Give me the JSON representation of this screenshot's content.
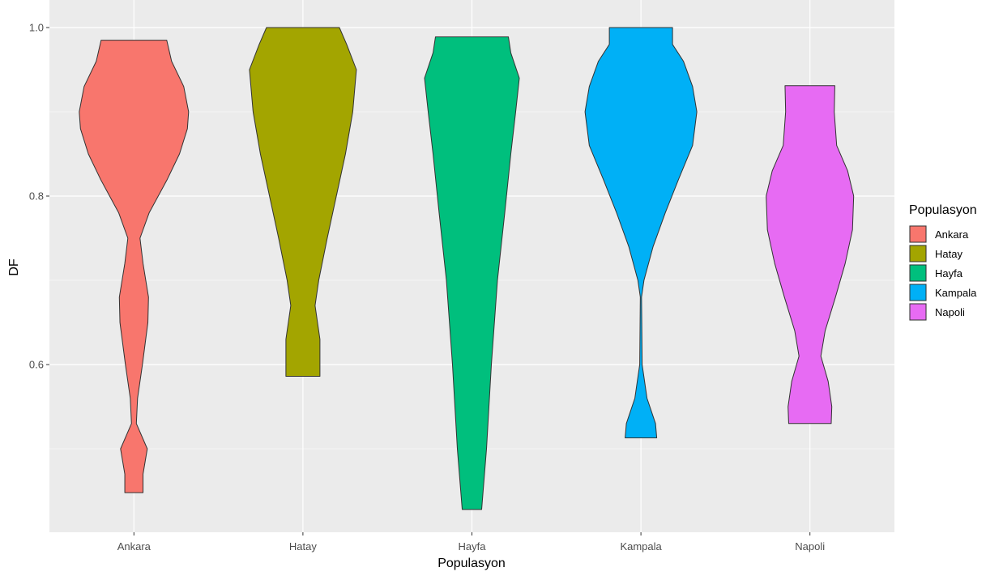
{
  "chart_data": {
    "type": "violin",
    "xlabel": "Populasyon",
    "ylabel": "DF",
    "ylim": [
      0.4,
      1.02
    ],
    "yticks": [
      "0.6",
      "0.8",
      "1.0"
    ],
    "ytick_values": [
      0.6,
      0.8,
      1.0
    ],
    "grid": true,
    "legend": {
      "title": "Populasyon",
      "placement": "right"
    },
    "categories": [
      "Ankara",
      "Hatay",
      "Hayfa",
      "Kampala",
      "Napoli"
    ],
    "series": [
      {
        "name": "Ankara",
        "color": "#F8766D",
        "min": 0.448,
        "max": 0.985,
        "profile": [
          [
            0.448,
            0.15
          ],
          [
            0.47,
            0.15
          ],
          [
            0.5,
            0.22
          ],
          [
            0.53,
            0.04
          ],
          [
            0.56,
            0.06
          ],
          [
            0.6,
            0.14
          ],
          [
            0.65,
            0.23
          ],
          [
            0.68,
            0.24
          ],
          [
            0.72,
            0.15
          ],
          [
            0.75,
            0.1
          ],
          [
            0.78,
            0.25
          ],
          [
            0.82,
            0.55
          ],
          [
            0.85,
            0.75
          ],
          [
            0.88,
            0.88
          ],
          [
            0.9,
            0.9
          ],
          [
            0.93,
            0.82
          ],
          [
            0.96,
            0.62
          ],
          [
            0.985,
            0.54
          ]
        ]
      },
      {
        "name": "Hatay",
        "color": "#A3A500",
        "min": 0.586,
        "max": 1.0,
        "profile": [
          [
            0.586,
            0.28
          ],
          [
            0.6,
            0.28
          ],
          [
            0.63,
            0.28
          ],
          [
            0.67,
            0.2
          ],
          [
            0.7,
            0.26
          ],
          [
            0.75,
            0.4
          ],
          [
            0.8,
            0.55
          ],
          [
            0.85,
            0.7
          ],
          [
            0.9,
            0.82
          ],
          [
            0.95,
            0.88
          ],
          [
            0.98,
            0.72
          ],
          [
            1.0,
            0.6
          ]
        ]
      },
      {
        "name": "Hayfa",
        "color": "#00BF7D",
        "min": 0.428,
        "max": 0.989,
        "profile": [
          [
            0.428,
            0.16
          ],
          [
            0.5,
            0.24
          ],
          [
            0.6,
            0.32
          ],
          [
            0.7,
            0.42
          ],
          [
            0.78,
            0.54
          ],
          [
            0.85,
            0.64
          ],
          [
            0.9,
            0.72
          ],
          [
            0.94,
            0.78
          ],
          [
            0.97,
            0.64
          ],
          [
            0.989,
            0.6
          ]
        ]
      },
      {
        "name": "Kampala",
        "color": "#00B0F6",
        "min": 0.513,
        "max": 1.0,
        "profile": [
          [
            0.513,
            0.26
          ],
          [
            0.53,
            0.24
          ],
          [
            0.56,
            0.1
          ],
          [
            0.6,
            0.02
          ],
          [
            0.68,
            0.01
          ],
          [
            0.7,
            0.05
          ],
          [
            0.74,
            0.2
          ],
          [
            0.78,
            0.4
          ],
          [
            0.82,
            0.62
          ],
          [
            0.86,
            0.85
          ],
          [
            0.9,
            0.92
          ],
          [
            0.93,
            0.85
          ],
          [
            0.96,
            0.7
          ],
          [
            0.98,
            0.52
          ],
          [
            1.0,
            0.52
          ]
        ]
      },
      {
        "name": "Napoli",
        "color": "#E76BF3",
        "min": 0.53,
        "max": 0.931,
        "profile": [
          [
            0.53,
            0.35
          ],
          [
            0.55,
            0.36
          ],
          [
            0.58,
            0.3
          ],
          [
            0.61,
            0.18
          ],
          [
            0.64,
            0.25
          ],
          [
            0.68,
            0.42
          ],
          [
            0.72,
            0.58
          ],
          [
            0.76,
            0.7
          ],
          [
            0.8,
            0.72
          ],
          [
            0.83,
            0.62
          ],
          [
            0.86,
            0.44
          ],
          [
            0.9,
            0.4
          ],
          [
            0.931,
            0.41
          ]
        ]
      }
    ]
  }
}
